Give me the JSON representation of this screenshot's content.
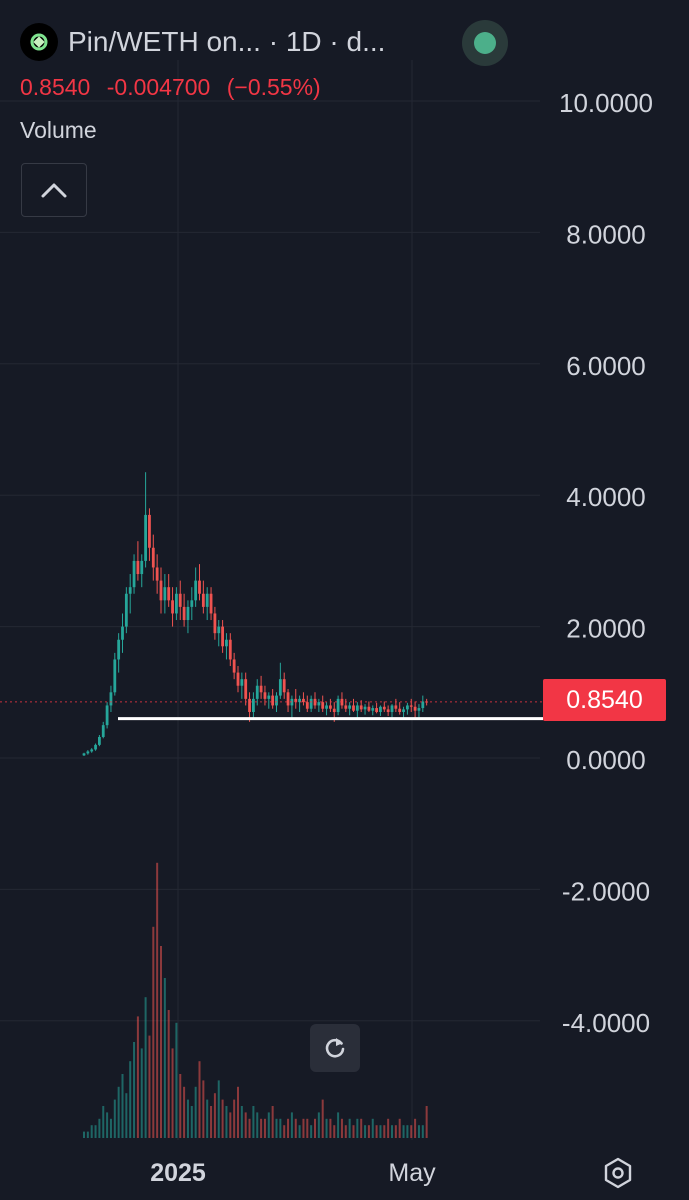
{
  "header": {
    "title": "Pin/WETH on... · 1D · d...",
    "last_price": "0.8540",
    "change": "-0.004700",
    "change_pct": "(−0.55%)",
    "volume_label": "Volume",
    "status_color": "#4caf8a"
  },
  "price_badge": "0.8540",
  "colors": {
    "background": "#161a25",
    "up": "#26a69a",
    "down": "#ef5350",
    "grid": "#242833",
    "support_line": "#ffffff",
    "price_badge": "#f23645"
  },
  "icons": {
    "collapse": "chevron-up-icon",
    "reset": "reset-icon",
    "settings": "hexagon-settings-icon",
    "logo": "token-logo-icon"
  },
  "chart_data": {
    "type": "candlestick",
    "title": "Pin/WETH on... · 1D · d...",
    "y_axis": {
      "ticks": [
        "10.0000",
        "8.0000",
        "6.0000",
        "4.0000",
        "2.0000",
        "0.0000",
        "-2.0000",
        "-4.0000"
      ],
      "ylim": [
        -5.8,
        11.4
      ]
    },
    "x_axis": {
      "ticks": [
        "2025",
        "May"
      ]
    },
    "last_price": 0.854,
    "support_level": 0.6,
    "grid": true,
    "series": [
      {
        "name": "Volume",
        "type": "bar",
        "values": [
          0.1,
          0.1,
          0.2,
          0.2,
          0.3,
          0.5,
          0.4,
          0.3,
          0.6,
          0.8,
          1.0,
          0.7,
          1.2,
          1.5,
          1.9,
          1.4,
          2.2,
          1.6,
          3.3,
          4.3,
          3.0,
          2.5,
          2.0,
          1.4,
          1.8,
          1.0,
          0.8,
          0.6,
          0.5,
          0.8,
          1.2,
          0.9,
          0.6,
          0.5,
          0.7,
          0.9,
          0.6,
          0.5,
          0.4,
          0.6,
          0.8,
          0.5,
          0.4,
          0.3,
          0.5,
          0.4,
          0.3,
          0.3,
          0.4,
          0.5,
          0.3,
          0.3,
          0.2,
          0.3,
          0.4,
          0.3,
          0.2,
          0.3,
          0.3,
          0.2,
          0.3,
          0.4,
          0.6,
          0.3,
          0.3,
          0.2,
          0.4,
          0.3,
          0.2,
          0.3,
          0.2,
          0.3,
          0.3,
          0.2,
          0.2,
          0.3,
          0.2,
          0.2,
          0.2,
          0.3,
          0.2,
          0.2,
          0.3,
          0.2,
          0.2,
          0.2,
          0.3,
          0.2,
          0.2,
          0.5
        ]
      }
    ],
    "candles": [
      [
        0.04,
        0.08,
        0.03,
        0.07
      ],
      [
        0.07,
        0.12,
        0.05,
        0.1
      ],
      [
        0.1,
        0.15,
        0.08,
        0.13
      ],
      [
        0.13,
        0.22,
        0.11,
        0.2
      ],
      [
        0.2,
        0.35,
        0.18,
        0.32
      ],
      [
        0.32,
        0.55,
        0.3,
        0.5
      ],
      [
        0.5,
        0.85,
        0.45,
        0.8
      ],
      [
        0.8,
        1.1,
        0.7,
        1.0
      ],
      [
        1.0,
        1.6,
        0.95,
        1.5
      ],
      [
        1.5,
        1.9,
        1.3,
        1.8
      ],
      [
        1.8,
        2.2,
        1.6,
        2.0
      ],
      [
        2.0,
        2.6,
        1.9,
        2.5
      ],
      [
        2.5,
        2.8,
        2.2,
        2.6
      ],
      [
        2.6,
        3.1,
        2.5,
        3.0
      ],
      [
        3.0,
        3.3,
        2.7,
        2.8
      ],
      [
        2.8,
        3.1,
        2.6,
        3.0
      ],
      [
        3.0,
        4.35,
        2.9,
        3.7
      ],
      [
        3.7,
        3.8,
        3.0,
        3.2
      ],
      [
        3.2,
        3.4,
        2.7,
        2.9
      ],
      [
        2.9,
        3.1,
        2.5,
        2.7
      ],
      [
        2.7,
        2.9,
        2.2,
        2.4
      ],
      [
        2.4,
        2.8,
        2.2,
        2.6
      ],
      [
        2.6,
        2.8,
        2.3,
        2.4
      ],
      [
        2.4,
        2.6,
        2.0,
        2.2
      ],
      [
        2.2,
        2.6,
        2.1,
        2.5
      ],
      [
        2.5,
        2.7,
        2.1,
        2.3
      ],
      [
        2.3,
        2.5,
        2.0,
        2.1
      ],
      [
        2.1,
        2.4,
        1.9,
        2.3
      ],
      [
        2.3,
        2.6,
        2.1,
        2.4
      ],
      [
        2.4,
        2.9,
        2.3,
        2.7
      ],
      [
        2.7,
        2.95,
        2.4,
        2.5
      ],
      [
        2.5,
        2.7,
        2.2,
        2.3
      ],
      [
        2.3,
        2.6,
        2.1,
        2.5
      ],
      [
        2.5,
        2.6,
        2.1,
        2.2
      ],
      [
        2.2,
        2.3,
        1.8,
        1.9
      ],
      [
        1.9,
        2.1,
        1.7,
        2.0
      ],
      [
        2.0,
        2.1,
        1.6,
        1.7
      ],
      [
        1.7,
        1.9,
        1.5,
        1.8
      ],
      [
        1.8,
        1.9,
        1.4,
        1.5
      ],
      [
        1.5,
        1.6,
        1.2,
        1.3
      ],
      [
        1.3,
        1.4,
        1.0,
        1.1
      ],
      [
        1.1,
        1.3,
        0.9,
        1.2
      ],
      [
        1.2,
        1.3,
        0.8,
        0.9
      ],
      [
        0.9,
        1.0,
        0.55,
        0.7
      ],
      [
        0.7,
        1.0,
        0.6,
        0.9
      ],
      [
        0.9,
        1.2,
        0.8,
        1.1
      ],
      [
        1.1,
        1.25,
        0.9,
        1.0
      ],
      [
        1.0,
        1.1,
        0.8,
        0.9
      ],
      [
        0.9,
        1.0,
        0.75,
        0.95
      ],
      [
        0.95,
        1.05,
        0.75,
        0.8
      ],
      [
        0.8,
        1.0,
        0.7,
        0.95
      ],
      [
        0.95,
        1.45,
        0.9,
        1.2
      ],
      [
        1.2,
        1.3,
        0.9,
        1.0
      ],
      [
        1.0,
        1.05,
        0.7,
        0.8
      ],
      [
        0.8,
        0.95,
        0.6,
        0.9
      ],
      [
        0.9,
        1.05,
        0.75,
        0.85
      ],
      [
        0.85,
        0.95,
        0.7,
        0.9
      ],
      [
        0.9,
        1.0,
        0.8,
        0.85
      ],
      [
        0.85,
        0.95,
        0.7,
        0.75
      ],
      [
        0.75,
        0.95,
        0.7,
        0.9
      ],
      [
        0.9,
        1.0,
        0.75,
        0.8
      ],
      [
        0.8,
        0.9,
        0.7,
        0.85
      ],
      [
        0.85,
        0.95,
        0.7,
        0.75
      ],
      [
        0.75,
        0.85,
        0.65,
        0.8
      ],
      [
        0.8,
        0.9,
        0.7,
        0.75
      ],
      [
        0.75,
        0.85,
        0.55,
        0.7
      ],
      [
        0.7,
        0.95,
        0.65,
        0.9
      ],
      [
        0.9,
        1.0,
        0.75,
        0.8
      ],
      [
        0.8,
        0.9,
        0.7,
        0.75
      ],
      [
        0.75,
        0.85,
        0.65,
        0.8
      ],
      [
        0.8,
        0.9,
        0.7,
        0.72
      ],
      [
        0.72,
        0.85,
        0.6,
        0.8
      ],
      [
        0.8,
        0.88,
        0.7,
        0.74
      ],
      [
        0.74,
        0.82,
        0.66,
        0.78
      ],
      [
        0.78,
        0.86,
        0.7,
        0.72
      ],
      [
        0.72,
        0.8,
        0.65,
        0.76
      ],
      [
        0.76,
        0.84,
        0.68,
        0.7
      ],
      [
        0.7,
        0.8,
        0.64,
        0.78
      ],
      [
        0.78,
        0.86,
        0.7,
        0.74
      ],
      [
        0.74,
        0.8,
        0.64,
        0.7
      ],
      [
        0.7,
        0.82,
        0.62,
        0.8
      ],
      [
        0.8,
        0.9,
        0.7,
        0.75
      ],
      [
        0.75,
        0.85,
        0.66,
        0.7
      ],
      [
        0.7,
        0.78,
        0.6,
        0.74
      ],
      [
        0.74,
        0.84,
        0.66,
        0.8
      ],
      [
        0.8,
        0.9,
        0.7,
        0.78
      ],
      [
        0.78,
        0.86,
        0.6,
        0.72
      ],
      [
        0.72,
        0.82,
        0.62,
        0.76
      ],
      [
        0.76,
        0.95,
        0.7,
        0.86
      ],
      [
        0.86,
        0.9,
        0.8,
        0.854
      ]
    ]
  }
}
